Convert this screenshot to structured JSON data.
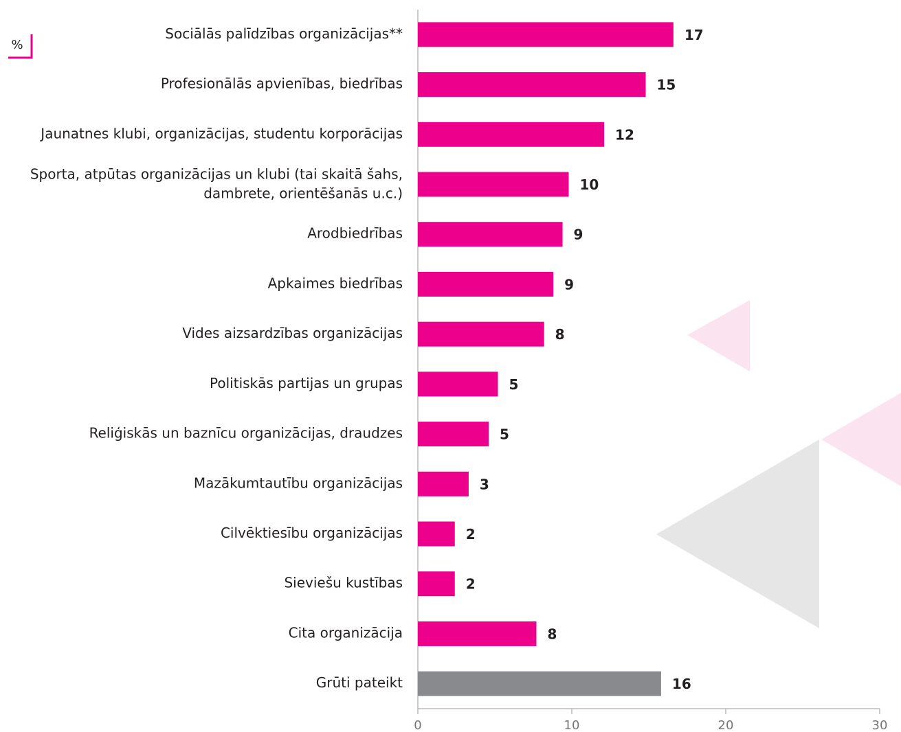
{
  "chart_data": {
    "type": "hbar",
    "unit_label": "%",
    "categories": [
      "Sociālās palīdzības organizācijas**",
      "Profesionālās apvienības, biedrības",
      "Jaunatnes klubi, organizācijas, studentu korporācijas",
      "Sporta, atpūtas organizācijas un klubi (tai skaitā šahs,\ndambrete, orientēšanās u.c.)",
      "Arodbiedrības",
      "Apkaimes biedrības",
      "Vides aizsardzības organizācijas",
      "Politiskās partijas un grupas",
      "Reliģiskās un baznīcu organizācijas, draudzes",
      "Mazākumtautību organizācijas",
      "Cilvēktiesību organizācijas",
      "Sieviešu kustības",
      "Cita organizācija",
      "Grūti pateikt"
    ],
    "values": [
      16.6,
      14.8,
      12.1,
      9.8,
      9.4,
      8.8,
      8.2,
      5.2,
      4.6,
      3.3,
      2.4,
      2.4,
      7.7,
      15.8
    ],
    "value_labels": [
      "17",
      "15",
      "12",
      "10",
      "9",
      "9",
      "8",
      "5",
      "5",
      "3",
      "2",
      "2",
      "8",
      "16"
    ],
    "colors": [
      "#ec008c",
      "#ec008c",
      "#ec008c",
      "#ec008c",
      "#ec008c",
      "#ec008c",
      "#ec008c",
      "#ec008c",
      "#ec008c",
      "#ec008c",
      "#ec008c",
      "#ec008c",
      "#ec008c",
      "#898a8d"
    ],
    "xlim": [
      0,
      30
    ],
    "xticks": [
      0,
      10,
      20,
      30
    ]
  }
}
